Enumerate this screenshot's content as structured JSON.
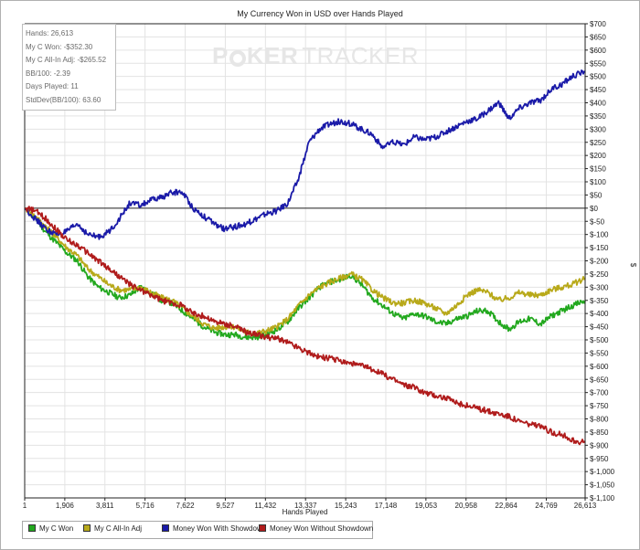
{
  "chart_data": {
    "type": "line",
    "title": "My Currency Won in USD over Hands Played",
    "xlabel": "Hands Played",
    "ylabel": "$",
    "xlim": [
      1,
      26613
    ],
    "ylim": [
      -1100,
      700
    ],
    "x_ticks": [
      "1",
      "1,906",
      "3,811",
      "5,716",
      "7,622",
      "9,527",
      "11,432",
      "13,337",
      "15,243",
      "17,148",
      "19,053",
      "20,958",
      "22,864",
      "24,769",
      "26,613"
    ],
    "x_tick_values": [
      1,
      1906,
      3811,
      5716,
      7622,
      9527,
      11432,
      13337,
      15243,
      17148,
      19053,
      20958,
      22864,
      24769,
      26613
    ],
    "y_ticks": [
      "$700",
      "$650",
      "$600",
      "$550",
      "$500",
      "$450",
      "$400",
      "$350",
      "$300",
      "$250",
      "$200",
      "$150",
      "$100",
      "$50",
      "$0",
      "$-50",
      "$-100",
      "$-150",
      "$-200",
      "$-250",
      "$-300",
      "$-350",
      "$-400",
      "$-450",
      "$-500",
      "$-550",
      "$-600",
      "$-650",
      "$-700",
      "$-750",
      "$-800",
      "$-850",
      "$-900",
      "$-950",
      "$-1,000",
      "$-1,050",
      "$-1,100"
    ],
    "y_tick_values": [
      700,
      650,
      600,
      550,
      500,
      450,
      400,
      350,
      300,
      250,
      200,
      150,
      100,
      50,
      0,
      -50,
      -100,
      -150,
      -200,
      -250,
      -300,
      -350,
      -400,
      -450,
      -500,
      -550,
      -600,
      -650,
      -700,
      -750,
      -800,
      -850,
      -900,
      -950,
      -1000,
      -1050,
      -1100
    ],
    "grid": true,
    "legend_position": "bottom-left",
    "series": [
      {
        "name": "My C Won",
        "color": "#22a81e",
        "points": [
          [
            1,
            0
          ],
          [
            500,
            -40
          ],
          [
            1000,
            -90
          ],
          [
            1500,
            -130
          ],
          [
            2000,
            -170
          ],
          [
            2500,
            -200
          ],
          [
            3000,
            -260
          ],
          [
            3500,
            -300
          ],
          [
            4000,
            -320
          ],
          [
            4500,
            -340
          ],
          [
            5000,
            -330
          ],
          [
            5500,
            -300
          ],
          [
            6000,
            -320
          ],
          [
            6500,
            -350
          ],
          [
            7000,
            -360
          ],
          [
            7500,
            -390
          ],
          [
            8000,
            -420
          ],
          [
            8500,
            -450
          ],
          [
            9000,
            -470
          ],
          [
            9500,
            -480
          ],
          [
            10000,
            -480
          ],
          [
            10500,
            -490
          ],
          [
            11000,
            -490
          ],
          [
            11500,
            -480
          ],
          [
            12000,
            -460
          ],
          [
            12500,
            -430
          ],
          [
            13000,
            -380
          ],
          [
            13500,
            -340
          ],
          [
            14000,
            -300
          ],
          [
            14500,
            -280
          ],
          [
            15000,
            -270
          ],
          [
            15500,
            -255
          ],
          [
            16000,
            -290
          ],
          [
            16500,
            -340
          ],
          [
            17000,
            -370
          ],
          [
            17500,
            -400
          ],
          [
            18000,
            -420
          ],
          [
            18500,
            -400
          ],
          [
            19000,
            -410
          ],
          [
            19500,
            -430
          ],
          [
            20000,
            -440
          ],
          [
            20500,
            -420
          ],
          [
            21000,
            -410
          ],
          [
            21500,
            -390
          ],
          [
            22000,
            -390
          ],
          [
            22500,
            -430
          ],
          [
            23000,
            -460
          ],
          [
            23500,
            -430
          ],
          [
            24000,
            -420
          ],
          [
            24500,
            -440
          ],
          [
            25000,
            -410
          ],
          [
            25500,
            -390
          ],
          [
            26000,
            -370
          ],
          [
            26613,
            -352.3
          ]
        ]
      },
      {
        "name": "My C All-In Adj",
        "color": "#b8a91a",
        "points": [
          [
            1,
            0
          ],
          [
            500,
            -30
          ],
          [
            1000,
            -70
          ],
          [
            1500,
            -110
          ],
          [
            2000,
            -150
          ],
          [
            2500,
            -180
          ],
          [
            3000,
            -230
          ],
          [
            3500,
            -260
          ],
          [
            4000,
            -290
          ],
          [
            4500,
            -310
          ],
          [
            5000,
            -310
          ],
          [
            5500,
            -300
          ],
          [
            6000,
            -320
          ],
          [
            6500,
            -340
          ],
          [
            7000,
            -350
          ],
          [
            7500,
            -380
          ],
          [
            8000,
            -410
          ],
          [
            8500,
            -440
          ],
          [
            9000,
            -455
          ],
          [
            9500,
            -450
          ],
          [
            10000,
            -450
          ],
          [
            10500,
            -470
          ],
          [
            11000,
            -475
          ],
          [
            11500,
            -465
          ],
          [
            12000,
            -450
          ],
          [
            12500,
            -420
          ],
          [
            13000,
            -370
          ],
          [
            13500,
            -330
          ],
          [
            14000,
            -300
          ],
          [
            14500,
            -280
          ],
          [
            15000,
            -265
          ],
          [
            15500,
            -250
          ],
          [
            16000,
            -270
          ],
          [
            16500,
            -310
          ],
          [
            17000,
            -340
          ],
          [
            17500,
            -360
          ],
          [
            18000,
            -360
          ],
          [
            18500,
            -350
          ],
          [
            19000,
            -360
          ],
          [
            19500,
            -380
          ],
          [
            20000,
            -400
          ],
          [
            20500,
            -370
          ],
          [
            21000,
            -330
          ],
          [
            21500,
            -310
          ],
          [
            22000,
            -320
          ],
          [
            22500,
            -350
          ],
          [
            23000,
            -340
          ],
          [
            23500,
            -320
          ],
          [
            24000,
            -330
          ],
          [
            24500,
            -330
          ],
          [
            25000,
            -310
          ],
          [
            25500,
            -300
          ],
          [
            26000,
            -290
          ],
          [
            26613,
            -265.52
          ]
        ]
      },
      {
        "name": "Money Won With Showdown",
        "color": "#1a1aa8",
        "points": [
          [
            1,
            0
          ],
          [
            500,
            -40
          ],
          [
            1000,
            -80
          ],
          [
            1500,
            -100
          ],
          [
            2000,
            -90
          ],
          [
            2500,
            -60
          ],
          [
            3000,
            -100
          ],
          [
            3500,
            -110
          ],
          [
            4000,
            -90
          ],
          [
            4500,
            -40
          ],
          [
            5000,
            20
          ],
          [
            5500,
            10
          ],
          [
            6000,
            30
          ],
          [
            6500,
            40
          ],
          [
            7000,
            60
          ],
          [
            7500,
            60
          ],
          [
            8000,
            0
          ],
          [
            8500,
            -30
          ],
          [
            9000,
            -60
          ],
          [
            9500,
            -80
          ],
          [
            10000,
            -70
          ],
          [
            10500,
            -60
          ],
          [
            11000,
            -40
          ],
          [
            11500,
            -20
          ],
          [
            12000,
            -10
          ],
          [
            12500,
            20
          ],
          [
            13000,
            110
          ],
          [
            13500,
            250
          ],
          [
            14000,
            300
          ],
          [
            14500,
            320
          ],
          [
            15000,
            330
          ],
          [
            15500,
            320
          ],
          [
            16000,
            300
          ],
          [
            16500,
            280
          ],
          [
            17000,
            230
          ],
          [
            17500,
            250
          ],
          [
            18000,
            240
          ],
          [
            18500,
            270
          ],
          [
            19000,
            260
          ],
          [
            19500,
            270
          ],
          [
            20000,
            290
          ],
          [
            20500,
            310
          ],
          [
            21000,
            330
          ],
          [
            21500,
            340
          ],
          [
            22000,
            370
          ],
          [
            22500,
            400
          ],
          [
            23000,
            340
          ],
          [
            23500,
            380
          ],
          [
            24000,
            400
          ],
          [
            24500,
            410
          ],
          [
            25000,
            450
          ],
          [
            25500,
            470
          ],
          [
            26000,
            500
          ],
          [
            26613,
            520
          ]
        ]
      },
      {
        "name": "Money Won Without Showdown",
        "color": "#b01c1c",
        "points": [
          [
            1,
            0
          ],
          [
            500,
            -10
          ],
          [
            1000,
            -40
          ],
          [
            1500,
            -80
          ],
          [
            2000,
            -120
          ],
          [
            2500,
            -140
          ],
          [
            3000,
            -170
          ],
          [
            3500,
            -200
          ],
          [
            4000,
            -230
          ],
          [
            4500,
            -260
          ],
          [
            5000,
            -290
          ],
          [
            5500,
            -310
          ],
          [
            6000,
            -330
          ],
          [
            6500,
            -350
          ],
          [
            7000,
            -360
          ],
          [
            7500,
            -370
          ],
          [
            8000,
            -400
          ],
          [
            8500,
            -410
          ],
          [
            9000,
            -430
          ],
          [
            9500,
            -440
          ],
          [
            10000,
            -450
          ],
          [
            10500,
            -470
          ],
          [
            11000,
            -480
          ],
          [
            11500,
            -490
          ],
          [
            12000,
            -495
          ],
          [
            12500,
            -510
          ],
          [
            13000,
            -530
          ],
          [
            13500,
            -550
          ],
          [
            14000,
            -565
          ],
          [
            14500,
            -570
          ],
          [
            15000,
            -580
          ],
          [
            15500,
            -590
          ],
          [
            16000,
            -600
          ],
          [
            16500,
            -610
          ],
          [
            17000,
            -630
          ],
          [
            17500,
            -650
          ],
          [
            18000,
            -670
          ],
          [
            18500,
            -680
          ],
          [
            19000,
            -700
          ],
          [
            19500,
            -710
          ],
          [
            20000,
            -720
          ],
          [
            20500,
            -740
          ],
          [
            21000,
            -750
          ],
          [
            21500,
            -760
          ],
          [
            22000,
            -770
          ],
          [
            22500,
            -780
          ],
          [
            23000,
            -790
          ],
          [
            23500,
            -810
          ],
          [
            24000,
            -820
          ],
          [
            24500,
            -830
          ],
          [
            25000,
            -850
          ],
          [
            25500,
            -860
          ],
          [
            26000,
            -880
          ],
          [
            26613,
            -890
          ]
        ]
      }
    ]
  },
  "stats": {
    "hands": "Hands: 26,613",
    "won": "My C Won: -$352.30",
    "allin": "My C All-In Adj: -$265.52",
    "bb100": "BB/100: -2.39",
    "days": "Days Played: 11",
    "stddev": "StdDev(BB/100): 63.60"
  },
  "watermark": {
    "brand_before": "P",
    "brand_after": "KER",
    "brand_thin": "TRACKER"
  },
  "legend": {
    "items": [
      {
        "label": "My C Won",
        "color": "#22a81e"
      },
      {
        "label": "My C All-In Adj",
        "color": "#b8a91a"
      },
      {
        "label": "Money Won With Showdown",
        "color": "#1a1aa8"
      },
      {
        "label": "Money Won Without Showdown",
        "color": "#b01c1c"
      }
    ]
  }
}
